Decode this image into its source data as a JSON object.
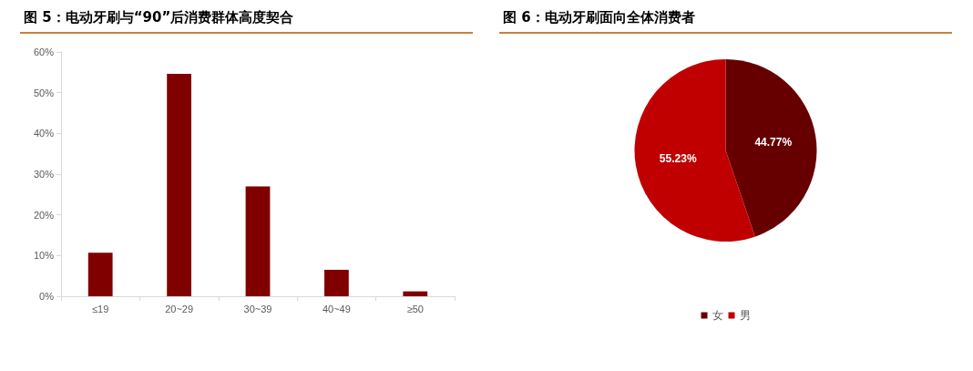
{
  "chart_data": [
    {
      "type": "bar",
      "title": "图 5：电动牙刷与“90”后消费群体高度契合",
      "categories": [
        "≤19",
        "20~29",
        "30~39",
        "40~49",
        "≥50"
      ],
      "values": [
        10.7,
        54.6,
        27,
        6.5,
        1.2
      ],
      "color": "#800000",
      "ylim": [
        0,
        60
      ],
      "yticks": [
        {
          "value": 0,
          "label": "0%"
        },
        {
          "value": 10,
          "label": "10%"
        },
        {
          "value": 20,
          "label": "20%"
        },
        {
          "value": 30,
          "label": "30%"
        },
        {
          "value": 40,
          "label": "40%"
        },
        {
          "value": 50,
          "label": "50%"
        },
        {
          "value": 60,
          "label": "60%"
        }
      ],
      "grid": false
    },
    {
      "type": "pie",
      "title": "图 6：电动牙刷面向全体消费者",
      "categories": [
        "女",
        "男"
      ],
      "values": [
        44.77,
        55.23
      ],
      "colors": [
        "#660000",
        "#c00000"
      ],
      "value_labels": [
        "44.77%",
        "55.23%"
      ],
      "legend": "bottom"
    }
  ]
}
